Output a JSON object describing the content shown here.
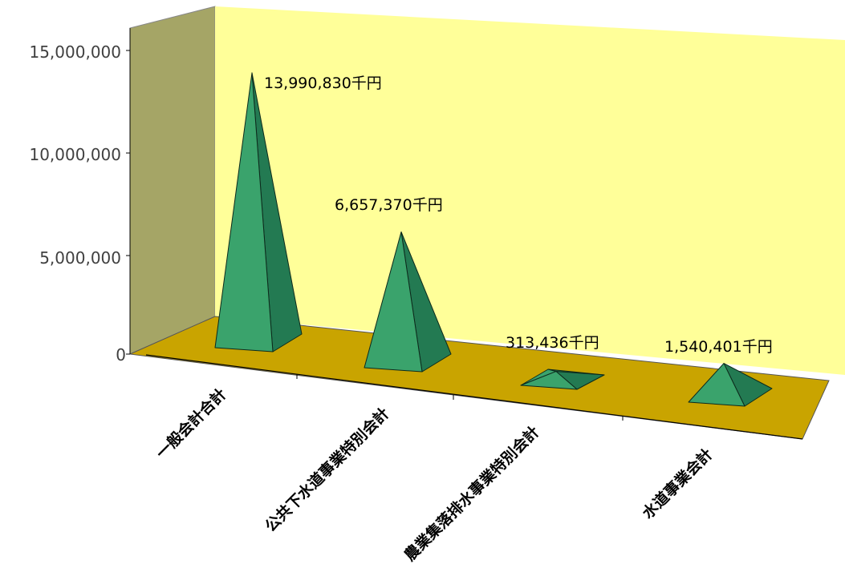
{
  "chart_data": {
    "type": "bar",
    "bar_shape": "pyramid",
    "three_d": true,
    "categories": [
      "一般会計合計",
      "公共下水道事業特別会計",
      "農業集落排水事業特別会計",
      "水道事業会計"
    ],
    "values": [
      13990830,
      6657370,
      313436,
      1540401
    ],
    "data_labels": [
      "13,990,830千円",
      "6,657,370千円",
      "313,436千円",
      "1,540,401千円"
    ],
    "y_ticks": [
      "0",
      "5,000,000",
      "10,000,000",
      "15,000,000"
    ],
    "ylim": [
      0,
      15000000
    ],
    "title": "",
    "xlabel": "",
    "ylabel": "",
    "legend": "none",
    "colors": {
      "back_wall": "#FFFF99",
      "side_wall": "#A5A566",
      "floor": "#C9A400",
      "pyramid_light": "#3AA36C",
      "pyramid_dark": "#237A52",
      "axis": "#000000"
    }
  }
}
